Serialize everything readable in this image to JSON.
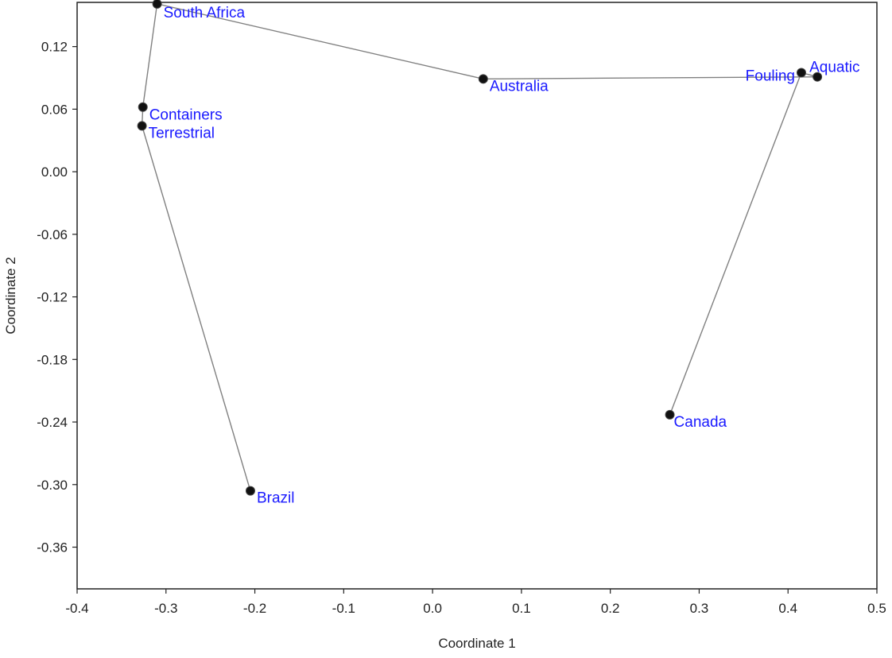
{
  "chart_data": {
    "type": "scatter",
    "title": "",
    "xlabel": "Coordinate 1",
    "ylabel": "Coordinate 2",
    "xlim": [
      -0.4,
      0.5
    ],
    "ylim": [
      -0.4,
      0.1624
    ],
    "grid": false,
    "legend": "none",
    "x_ticks": [
      -0.4,
      -0.3,
      -0.2,
      -0.1,
      0.0,
      0.1,
      0.2,
      0.3,
      0.4,
      0.5
    ],
    "x_tick_labels": [
      "-0.4",
      "-0.3",
      "-0.2",
      "-0.1",
      "0.0",
      "0.1",
      "0.2",
      "0.3",
      "0.4",
      "0.5"
    ],
    "y_ticks": [
      0.12,
      0.06,
      0.0,
      -0.06,
      -0.12,
      -0.18,
      -0.24,
      -0.3,
      -0.36
    ],
    "y_tick_labels": [
      "0.12",
      "0.06",
      "0.00",
      "-0.06",
      "-0.12",
      "-0.18",
      "-0.24",
      "-0.30",
      "-0.36"
    ],
    "points": [
      {
        "label": "South Africa",
        "x": -0.31,
        "y": 0.161
      },
      {
        "label": "Containers",
        "x": -0.326,
        "y": 0.062
      },
      {
        "label": "Terrestrial",
        "x": -0.327,
        "y": 0.044
      },
      {
        "label": "Brazil",
        "x": -0.205,
        "y": -0.306
      },
      {
        "label": "Australia",
        "x": 0.057,
        "y": 0.089
      },
      {
        "label": "Fouling",
        "x": 0.415,
        "y": 0.095
      },
      {
        "label": "Aquatic",
        "x": 0.433,
        "y": 0.091
      },
      {
        "label": "Canada",
        "x": 0.267,
        "y": -0.233
      }
    ],
    "connections": [
      [
        "Terrestrial",
        "Brazil"
      ],
      [
        "Terrestrial",
        "Containers"
      ],
      [
        "Containers",
        "South Africa"
      ],
      [
        "South Africa",
        "Australia"
      ],
      [
        "Australia",
        "Aquatic"
      ],
      [
        "Fouling",
        "Aquatic"
      ],
      [
        "Fouling",
        "Canada"
      ]
    ],
    "colors": {
      "point": "#111111",
      "line": "#808080",
      "label": "#1a1aff",
      "axis": "#222222"
    }
  }
}
